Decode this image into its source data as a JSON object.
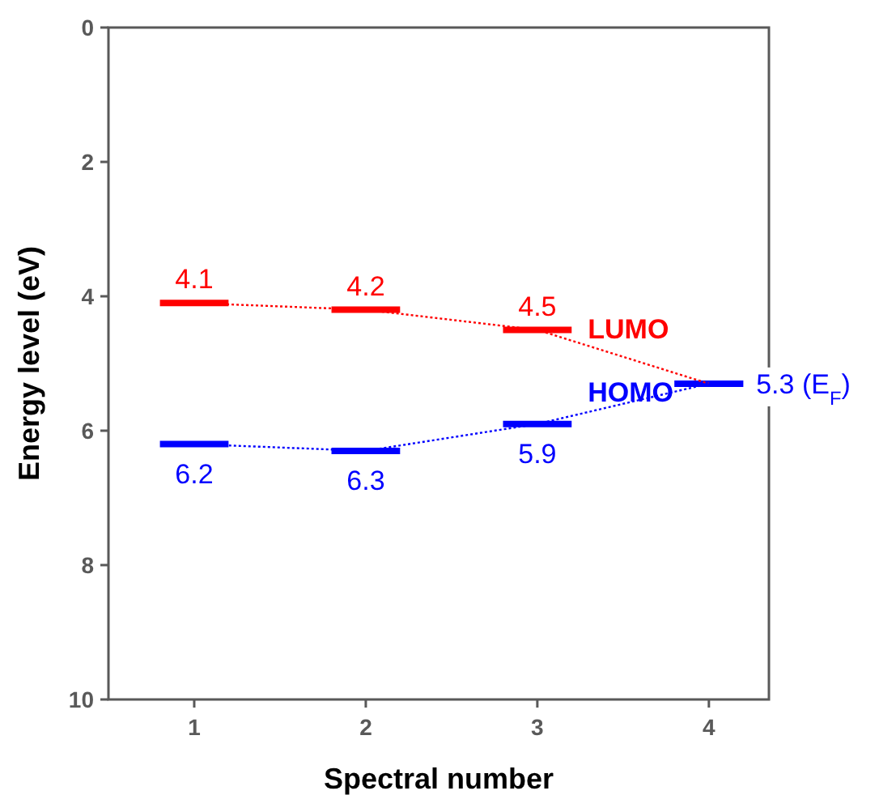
{
  "chart_data": {
    "type": "line",
    "xlabel": "Spectral number",
    "ylabel": "Energy level (eV)",
    "xlim": [
      0.5,
      4.35
    ],
    "xticks": [
      1,
      2,
      3,
      4
    ],
    "ylim": [
      10,
      0
    ],
    "yticks": [
      0,
      2,
      4,
      6,
      8,
      10
    ],
    "line_style": "dotted",
    "series": [
      {
        "name": "LUMO",
        "color": "#ff0000",
        "colors": [
          "#ff0000",
          "#ff0000",
          "#ff0000",
          "#0000ff"
        ],
        "x": [
          1,
          2,
          3,
          4
        ],
        "values": [
          4.1,
          4.2,
          4.5,
          5.3
        ],
        "xerrors": [
          0.2,
          0.2,
          0.2,
          0.2
        ],
        "value_labels": [
          "4.1",
          "4.2",
          "4.5",
          null
        ]
      },
      {
        "name": "HOMO",
        "color": "#0000ff",
        "x": [
          1,
          2,
          3,
          4
        ],
        "values": [
          6.2,
          6.3,
          5.9,
          5.3
        ],
        "xerrors": [
          0.2,
          0.2,
          0.2,
          0.2
        ],
        "value_labels": [
          "6.2",
          "6.3",
          "5.9",
          "5.3 (E$_{F}$)"
        ]
      }
    ]
  }
}
